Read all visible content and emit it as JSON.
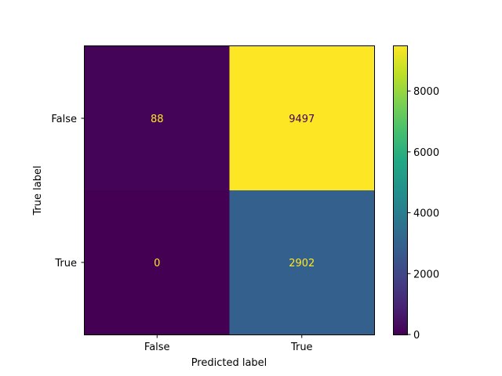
{
  "chart_data": {
    "type": "heatmap",
    "title": "",
    "xlabel": "Predicted label",
    "ylabel": "True label",
    "x_categories": [
      "False",
      "True"
    ],
    "y_categories": [
      "False",
      "True"
    ],
    "values": [
      [
        88,
        9497
      ],
      [
        0,
        2902
      ]
    ],
    "colormap": "viridis",
    "colorbar": {
      "range": [
        0,
        9497
      ],
      "ticks": [
        0,
        2000,
        4000,
        6000,
        8000
      ],
      "tick_labels": [
        "0",
        "2000",
        "4000",
        "6000",
        "8000"
      ]
    },
    "annotation_colors": {
      "on_dark": "#fde725",
      "on_light": "#440154"
    }
  }
}
